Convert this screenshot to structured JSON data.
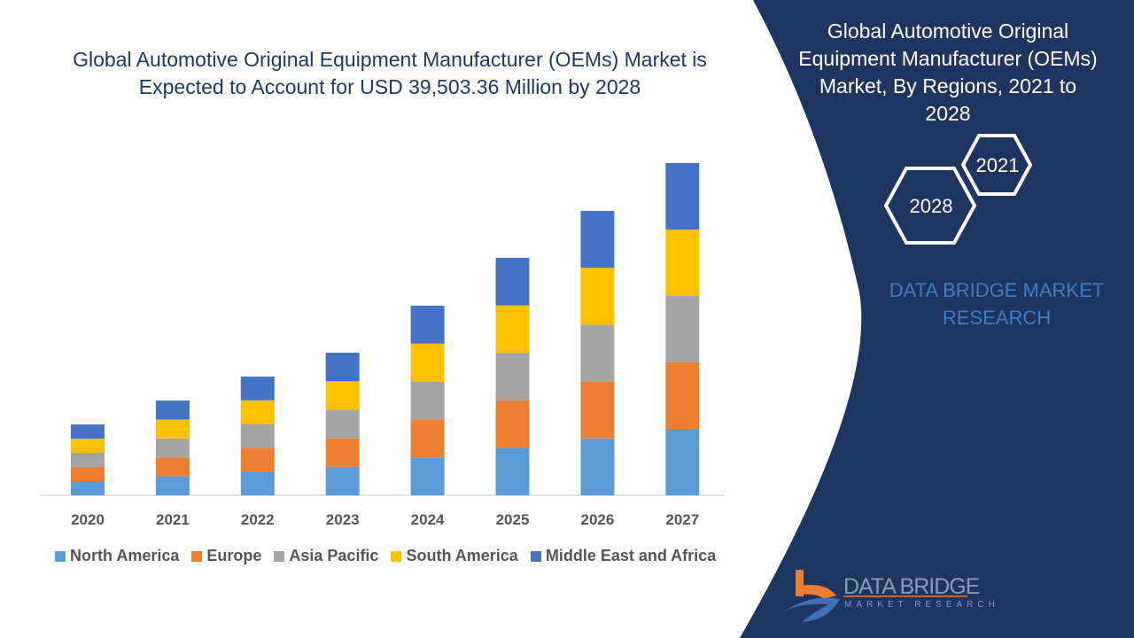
{
  "title": "Global Automotive Original Equipment Manufacturer (OEMs) Market is Expected to Account for USD 39,503.36 Million by 2028",
  "side_panel": {
    "title": "Global Automotive Original Equipment Manufacturer (OEMs) Market, By Regions, 2021 to 2028",
    "hex_labels": [
      "2021",
      "2028"
    ],
    "brand": "DATA BRIDGE MARKET RESEARCH",
    "logo_text": "DATA BRIDGE",
    "logo_subtext": "MARKET RESEARCH",
    "background_color": "#1e3461"
  },
  "chart_data": {
    "type": "bar",
    "stacked": true,
    "title": "Global Automotive Original Equipment Manufacturer (OEMs) Market is Expected to Account for USD 39,503.36 Million by 2028",
    "categories": [
      "2020",
      "2021",
      "2022",
      "2023",
      "2024",
      "2025",
      "2026",
      "2027"
    ],
    "series": [
      {
        "name": "North America",
        "color": "#5b9bd5",
        "values": [
          16,
          21.4,
          26.8,
          32.2,
          42.8,
          53.6,
          64.2,
          75
        ]
      },
      {
        "name": "Europe",
        "color": "#ed7d31",
        "values": [
          16,
          21.4,
          26.8,
          32.2,
          42.8,
          53.6,
          64.2,
          75
        ]
      },
      {
        "name": "Asia Pacific",
        "color": "#a5a5a5",
        "values": [
          16,
          21.4,
          26.8,
          32.2,
          42.8,
          53.6,
          64.2,
          75
        ]
      },
      {
        "name": "South America",
        "color": "#ffc000",
        "values": [
          16,
          21.4,
          26.8,
          32.2,
          42.8,
          53.6,
          64.2,
          75
        ]
      },
      {
        "name": "Middle East and Africa",
        "color": "#4472c4",
        "values": [
          16,
          21.4,
          26.8,
          32.2,
          42.8,
          53.6,
          64.2,
          75
        ]
      }
    ],
    "y_axis_shown": false,
    "grid": false,
    "legend_position": "bottom"
  }
}
